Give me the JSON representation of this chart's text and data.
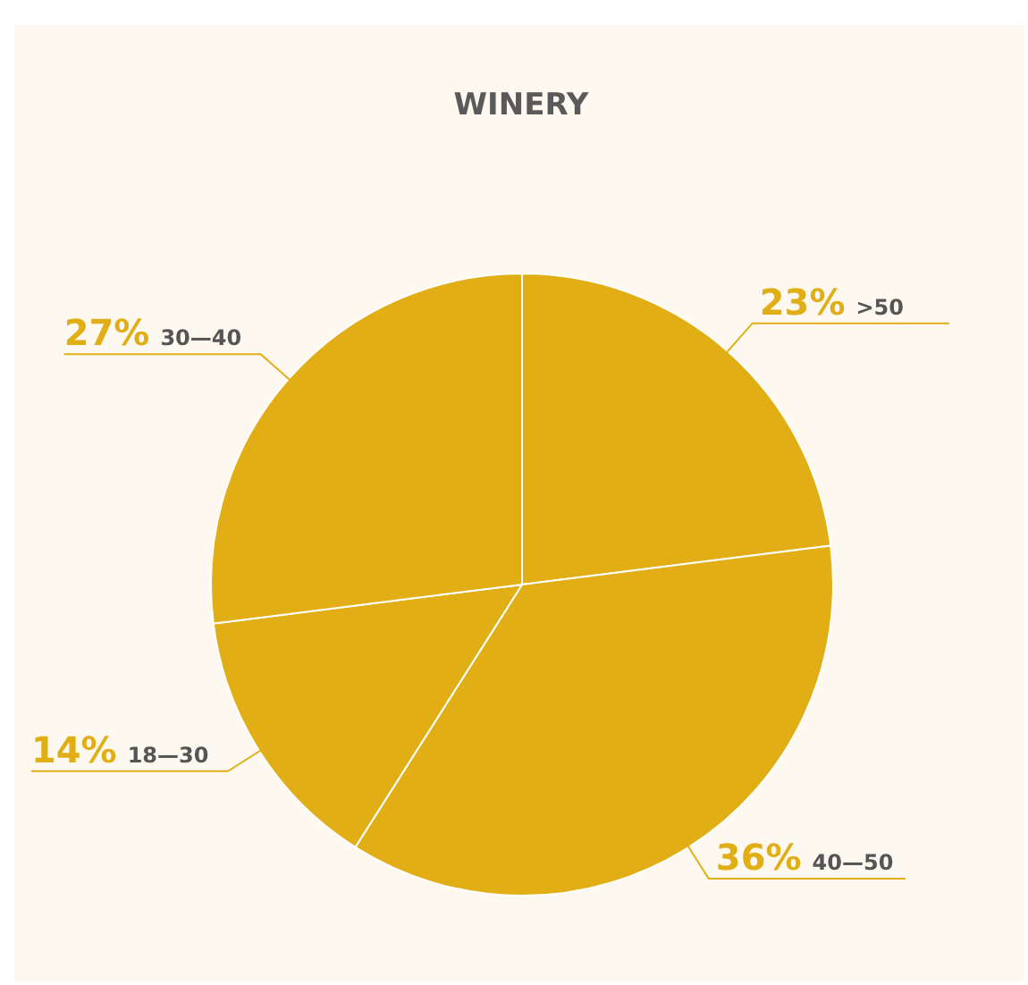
{
  "chart_data": {
    "type": "pie",
    "title": "WINERY",
    "categories": [
      ">50",
      "40—50",
      "18—30",
      "30—40"
    ],
    "values": [
      23,
      36,
      14,
      27
    ],
    "colors": [
      "#e2ae16",
      "#e2ae16",
      "#e2ae16",
      "#e2ae16"
    ],
    "value_labels": [
      "23%",
      "36%",
      "14%",
      "27%"
    ]
  }
}
